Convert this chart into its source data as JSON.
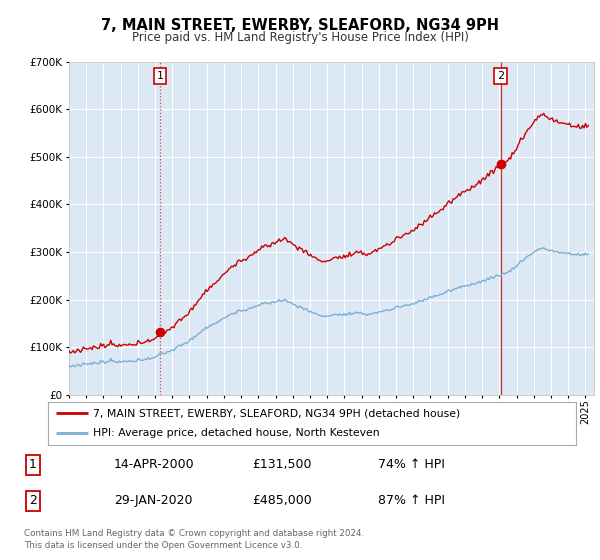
{
  "title": "7, MAIN STREET, EWERBY, SLEAFORD, NG34 9PH",
  "subtitle": "Price paid vs. HM Land Registry's House Price Index (HPI)",
  "hpi_label": "HPI: Average price, detached house, North Kesteven",
  "property_label": "7, MAIN STREET, EWERBY, SLEAFORD, NG34 9PH (detached house)",
  "transaction1_date": "14-APR-2000",
  "transaction1_price": "£131,500",
  "transaction1_hpi": "74% ↑ HPI",
  "transaction1_x": 2000.28,
  "transaction1_y": 131500,
  "transaction2_date": "29-JAN-2020",
  "transaction2_price": "£485,000",
  "transaction2_hpi": "87% ↑ HPI",
  "transaction2_x": 2020.08,
  "transaction2_y": 485000,
  "vline1_x": 2000.28,
  "vline2_x": 2020.08,
  "property_color": "#cc0000",
  "hpi_color": "#7bafd4",
  "background_color": "#dce9f5",
  "ylim": [
    0,
    700000
  ],
  "xlim_min": 1995.0,
  "xlim_max": 2025.5,
  "footnote": "Contains HM Land Registry data © Crown copyright and database right 2024.\nThis data is licensed under the Open Government Licence v3.0."
}
